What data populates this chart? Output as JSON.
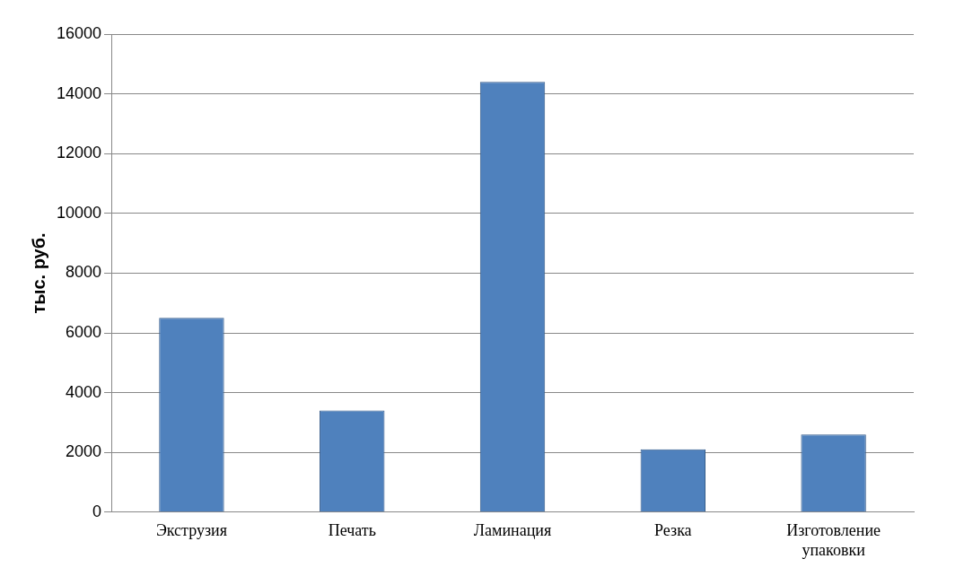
{
  "chart_data": {
    "type": "bar",
    "ylabel": "тыс. руб.",
    "categories": [
      "Экструзия",
      "Печать",
      "Ламинация",
      "Резка",
      "Изготовление упаковки"
    ],
    "values": [
      6500,
      3400,
      14400,
      2100,
      2600
    ],
    "color": "#4f81bd",
    "ylim": [
      0,
      16000
    ],
    "yticks": [
      0,
      2000,
      4000,
      6000,
      8000,
      10000,
      12000,
      14000,
      16000
    ],
    "grid": "y",
    "legend": false
  }
}
